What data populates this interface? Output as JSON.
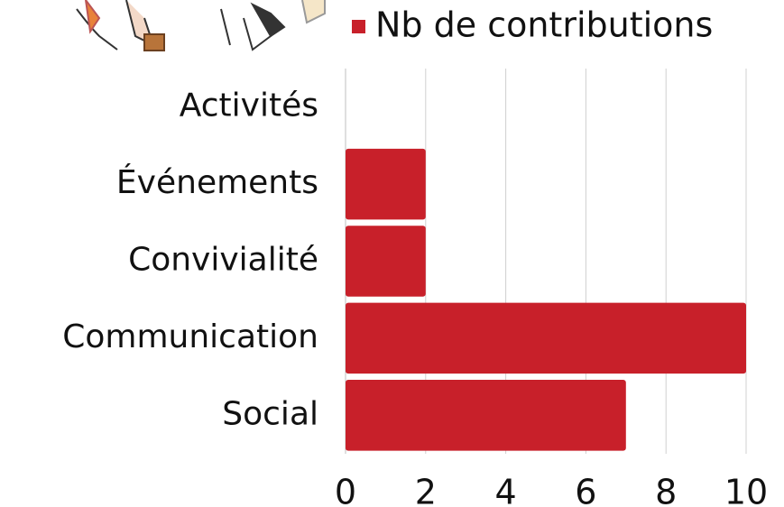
{
  "chart_data": {
    "type": "bar",
    "orientation": "horizontal",
    "categories": [
      "Activités",
      "Événements",
      "Convivialité",
      "Communication",
      "Social"
    ],
    "series": [
      {
        "name": "Nb de contributions",
        "color": "#c8202a",
        "values": [
          0,
          2,
          2,
          10,
          7
        ]
      }
    ],
    "xlim": [
      0,
      10
    ],
    "xticks": [
      0,
      2,
      4,
      6,
      8,
      10
    ],
    "grid": true,
    "legend": "top"
  }
}
